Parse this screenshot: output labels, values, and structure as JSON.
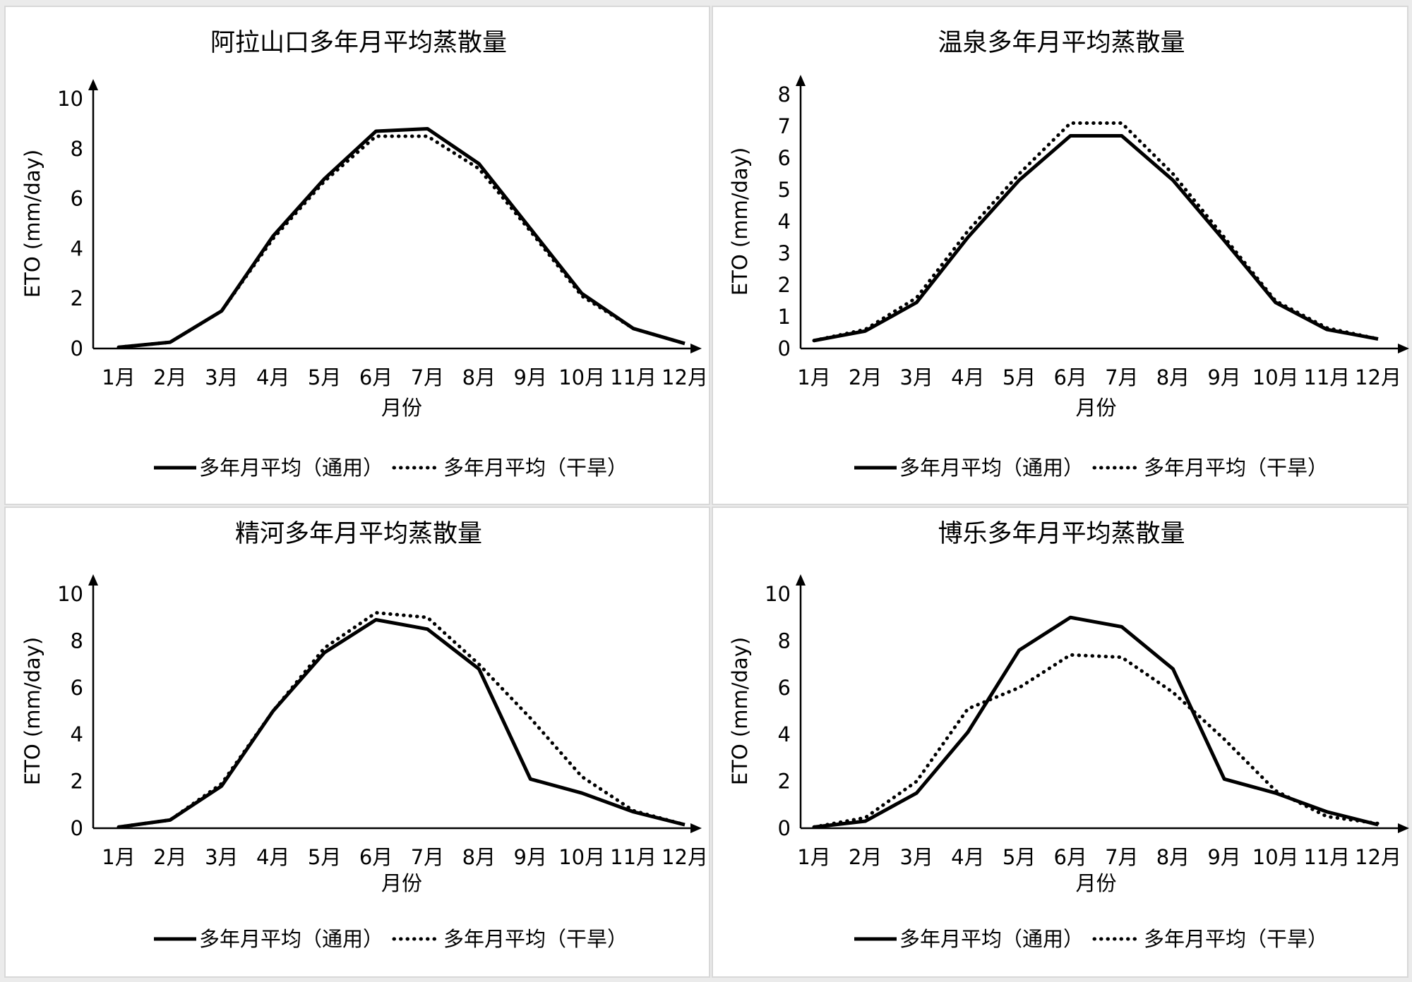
{
  "legend": {
    "general": "多年月平均（通用）",
    "arid": "多年月平均（干旱）"
  },
  "chart_data": [
    {
      "type": "line",
      "title": "阿拉山口多年月平均蒸散量",
      "xlabel": "月份",
      "ylabel": "ETO (mm/day)",
      "ylim": [
        0,
        10
      ],
      "yticks": [
        "0",
        "2",
        "4",
        "6",
        "8",
        "10"
      ],
      "categories": [
        "1月",
        "2月",
        "3月",
        "4月",
        "5月",
        "6月",
        "7月",
        "8月",
        "9月",
        "10月",
        "11月",
        "12月"
      ],
      "series": [
        {
          "name": "多年月平均（通用）",
          "style": "solid",
          "values": [
            0.05,
            0.25,
            1.5,
            4.5,
            6.8,
            8.7,
            8.8,
            7.4,
            4.8,
            2.2,
            0.8,
            0.2
          ]
        },
        {
          "name": "多年月平均（干旱）",
          "style": "dotted",
          "values": [
            0.05,
            0.25,
            1.5,
            4.4,
            6.7,
            8.5,
            8.5,
            7.2,
            4.7,
            2.1,
            0.8,
            0.2
          ]
        }
      ]
    },
    {
      "type": "line",
      "title": "温泉多年月平均蒸散量",
      "xlabel": "月份",
      "ylabel": "ETO (mm/day)",
      "ylim": [
        0,
        8
      ],
      "yticks": [
        "0",
        "1",
        "2",
        "3",
        "4",
        "5",
        "6",
        "7",
        "8"
      ],
      "categories": [
        "1月",
        "2月",
        "3月",
        "4月",
        "5月",
        "6月",
        "7月",
        "8月",
        "9月",
        "10月",
        "11月",
        "12月"
      ],
      "series": [
        {
          "name": "多年月平均（通用）",
          "style": "solid",
          "values": [
            0.25,
            0.55,
            1.45,
            3.5,
            5.3,
            6.7,
            6.7,
            5.3,
            3.4,
            1.45,
            0.6,
            0.3
          ]
        },
        {
          "name": "多年月平均（干旱）",
          "style": "dotted",
          "values": [
            0.25,
            0.6,
            1.6,
            3.7,
            5.5,
            7.1,
            7.1,
            5.5,
            3.5,
            1.5,
            0.65,
            0.3
          ]
        }
      ]
    },
    {
      "type": "line",
      "title": "精河多年月平均蒸散量",
      "xlabel": "月份",
      "ylabel": "ETO (mm/day)",
      "ylim": [
        0,
        10
      ],
      "yticks": [
        "0",
        "2",
        "4",
        "6",
        "8",
        "10"
      ],
      "categories": [
        "1月",
        "2月",
        "3月",
        "4月",
        "5月",
        "6月",
        "7月",
        "8月",
        "9月",
        "10月",
        "11月",
        "12月"
      ],
      "series": [
        {
          "name": "多年月平均（通用）",
          "style": "solid",
          "values": [
            0.05,
            0.35,
            1.8,
            5.0,
            7.5,
            8.9,
            8.5,
            6.8,
            2.1,
            1.5,
            0.7,
            0.15
          ]
        },
        {
          "name": "多年月平均（干旱）",
          "style": "dotted",
          "values": [
            0.05,
            0.35,
            1.9,
            5.0,
            7.7,
            9.2,
            9.0,
            7.0,
            4.7,
            2.2,
            0.75,
            0.15
          ]
        }
      ]
    },
    {
      "type": "line",
      "title": "博乐多年月平均蒸散量",
      "xlabel": "月份",
      "ylabel": "ETO (mm/day)",
      "ylim": [
        0,
        10
      ],
      "yticks": [
        "0",
        "2",
        "4",
        "6",
        "8",
        "10"
      ],
      "categories": [
        "1月",
        "2月",
        "3月",
        "4月",
        "5月",
        "6月",
        "7月",
        "8月",
        "9月",
        "10月",
        "11月",
        "12月"
      ],
      "series": [
        {
          "name": "多年月平均（通用）",
          "style": "solid",
          "values": [
            0.05,
            0.3,
            1.5,
            4.1,
            7.6,
            9.0,
            8.6,
            6.8,
            2.1,
            1.5,
            0.7,
            0.15
          ]
        },
        {
          "name": "多年月平均（干旱）",
          "style": "dotted",
          "values": [
            0.05,
            0.45,
            2.0,
            5.1,
            6.0,
            7.4,
            7.3,
            5.8,
            3.8,
            1.6,
            0.5,
            0.2
          ]
        }
      ]
    }
  ]
}
